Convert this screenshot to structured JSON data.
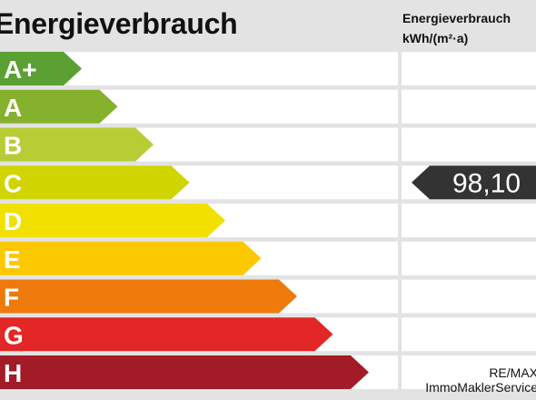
{
  "header": {
    "title": "Energieverbrauch",
    "unit_line1": "Energieverbrauch",
    "unit_line2": "kWh/(m²·a)"
  },
  "footer": {
    "line1": "RE/MAX",
    "line2": "ImmoMaklerService"
  },
  "colors": {
    "background": "#e3e3e3",
    "row": "#ffffff",
    "marker": "#333333"
  },
  "chart_data": {
    "type": "bar",
    "title": "Energieverbrauch",
    "ylabel": "Energieverbrauch kWh/(m²·a)",
    "categories": [
      "A+",
      "A",
      "B",
      "C",
      "D",
      "E",
      "F",
      "G",
      "H"
    ],
    "colors": [
      "#5aa032",
      "#86b12d",
      "#b7cd36",
      "#d0d400",
      "#f2e000",
      "#fcc800",
      "#ee7a0c",
      "#e32626",
      "#a31b26"
    ],
    "indicator": {
      "class": "C",
      "value": "98,10"
    }
  }
}
